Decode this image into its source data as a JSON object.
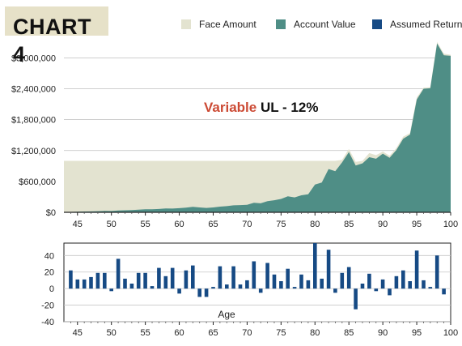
{
  "title": "CHART 4",
  "legend": {
    "face": "Face Amount",
    "account": "Account Value",
    "returns": "Assumed Return"
  },
  "colors": {
    "face": "#e3e3d0",
    "account": "#4f8e86",
    "returns": "#164a84",
    "title_bg": "#e6e1c8",
    "annotation_red": "#cc4a34"
  },
  "annotation": {
    "red": "Variable",
    "black": " UL - 12%"
  },
  "chart_data": [
    {
      "type": "area",
      "x_ticks": [
        45,
        50,
        55,
        60,
        65,
        70,
        75,
        80,
        85,
        90,
        95,
        100
      ],
      "y_ticks": [
        0,
        600000,
        1200000,
        1800000,
        2400000,
        3000000
      ],
      "y_tick_labels": [
        "$0",
        "$600,000",
        "$1,200,000",
        "$1,800,000",
        "$2,400,000",
        "$3,000,000"
      ],
      "xlim": [
        43,
        100
      ],
      "ylim": [
        0,
        3400000
      ],
      "series": [
        {
          "name": "Face Amount",
          "x": [
            43,
            80,
            81,
            82,
            83,
            84,
            85,
            86,
            87,
            88,
            89,
            90,
            91,
            92,
            93,
            94,
            95,
            96,
            97,
            98,
            99,
            100
          ],
          "values": [
            1000000,
            1000000,
            1000000,
            1000000,
            1000000,
            1020000,
            1230000,
            980000,
            1000000,
            1150000,
            1110000,
            1180000,
            1100000,
            1250000,
            1470000,
            1540000,
            2230000,
            2420000,
            2430000,
            3310000,
            3080000,
            3060000
          ]
        },
        {
          "name": "Account Value",
          "x": [
            43,
            44,
            45,
            46,
            47,
            48,
            49,
            50,
            51,
            52,
            53,
            54,
            55,
            56,
            57,
            58,
            59,
            60,
            61,
            62,
            63,
            64,
            65,
            66,
            67,
            68,
            69,
            70,
            71,
            72,
            73,
            74,
            75,
            76,
            77,
            78,
            79,
            80,
            81,
            82,
            83,
            84,
            85,
            86,
            87,
            88,
            89,
            90,
            91,
            92,
            93,
            94,
            95,
            96,
            97,
            98,
            99,
            100
          ],
          "values": [
            5000,
            8000,
            12000,
            15000,
            18000,
            22000,
            26000,
            25000,
            35000,
            40000,
            42000,
            50000,
            60000,
            58000,
            65000,
            75000,
            72000,
            80000,
            90000,
            105000,
            95000,
            85000,
            95000,
            110000,
            120000,
            135000,
            140000,
            145000,
            185000,
            175000,
            215000,
            235000,
            260000,
            310000,
            290000,
            330000,
            350000,
            540000,
            580000,
            840000,
            800000,
            970000,
            1170000,
            910000,
            950000,
            1070000,
            1040000,
            1140000,
            1060000,
            1210000,
            1430000,
            1510000,
            2190000,
            2400000,
            2410000,
            3280000,
            3050000,
            3040000
          ]
        }
      ]
    },
    {
      "type": "bar",
      "name": "Assumed Return",
      "xlabel": "Age",
      "x_ticks": [
        45,
        50,
        55,
        60,
        65,
        70,
        75,
        80,
        85,
        90,
        95,
        100
      ],
      "y_ticks": [
        40,
        20,
        0,
        -20,
        -40
      ],
      "ylim": [
        -40,
        55
      ],
      "x": [
        44,
        45,
        46,
        47,
        48,
        49,
        50,
        51,
        52,
        53,
        54,
        55,
        56,
        57,
        58,
        59,
        60,
        61,
        62,
        63,
        64,
        65,
        66,
        67,
        68,
        69,
        70,
        71,
        72,
        73,
        74,
        75,
        76,
        77,
        78,
        79,
        80,
        81,
        82,
        83,
        84,
        85,
        86,
        87,
        88,
        89,
        90,
        91,
        92,
        93,
        94,
        95,
        96,
        97,
        98,
        99
      ],
      "values": [
        22,
        11,
        11,
        14,
        19,
        19,
        -3,
        36,
        12,
        6,
        19,
        19,
        3,
        25,
        15,
        25,
        -6,
        22,
        28,
        -10,
        -10,
        2,
        27,
        5,
        27,
        5,
        10,
        33,
        -5,
        31,
        17,
        9,
        24,
        2,
        17,
        10,
        55,
        12,
        47,
        -5,
        19,
        26,
        -25,
        6,
        18,
        -3,
        11,
        -8,
        15,
        22,
        9,
        46,
        10,
        2,
        40,
        -7
      ]
    }
  ]
}
